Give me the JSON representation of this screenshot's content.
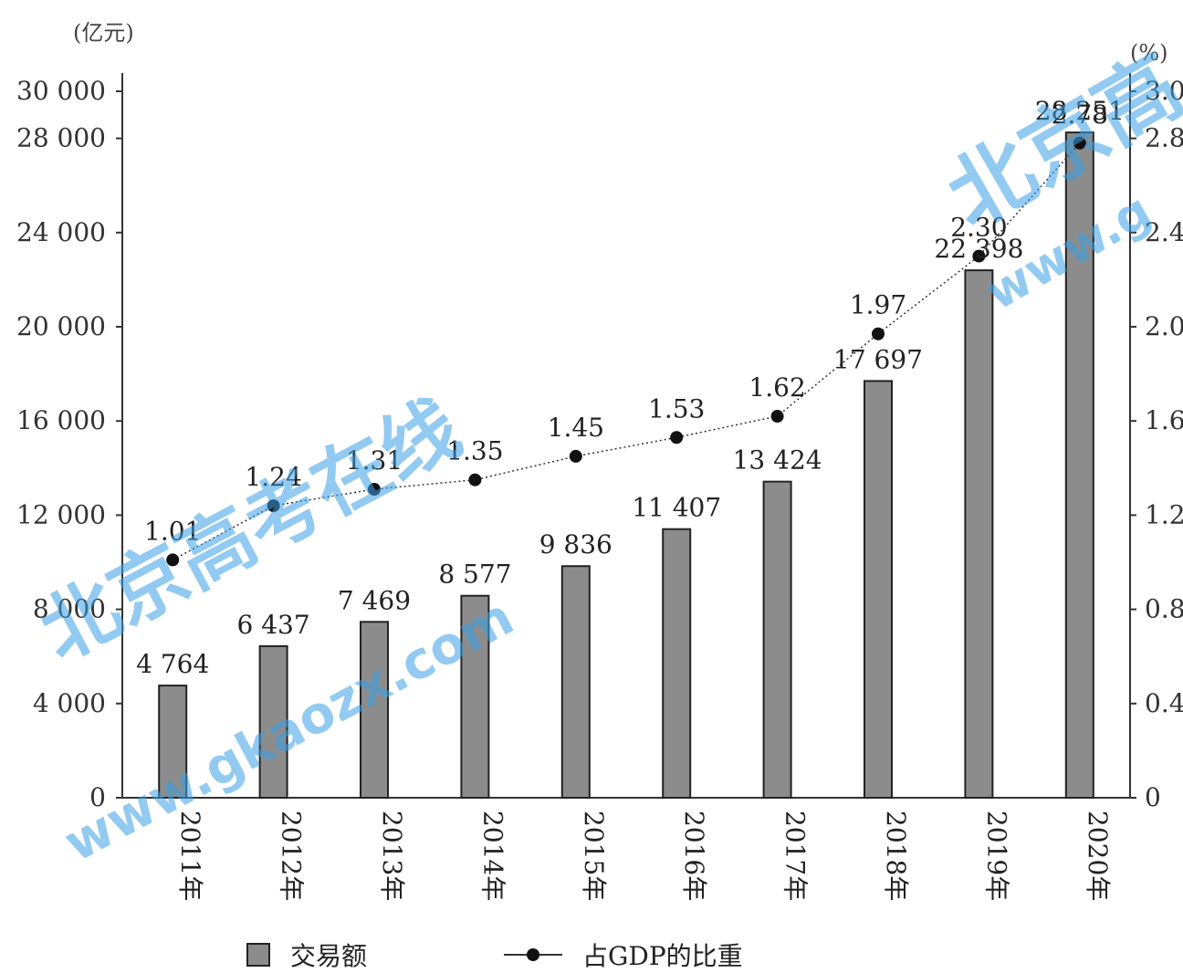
{
  "units": {
    "left": "(亿元)",
    "right": "(%)"
  },
  "legend": {
    "bar": "交易额",
    "line": "占GDP的比重"
  },
  "watermark": {
    "line1": "北京高考在线",
    "line2": "www.gkaozx.com",
    "corner": "北京高",
    "corner_url": "www.g",
    "bottom_left": "京高考",
    "bottom_url": "www.gkaozx.com"
  },
  "colors": {
    "bar": "#8c8c8c",
    "line": "#333333",
    "point": "#111111"
  },
  "chart_data": {
    "type": "bar",
    "categories": [
      "2011年",
      "2012年",
      "2013年",
      "2014年",
      "2015年",
      "2016年",
      "2017年",
      "2018年",
      "2019年",
      "2020年"
    ],
    "series": [
      {
        "name": "交易额",
        "type": "bar",
        "axis": "left",
        "values": [
          4764,
          6437,
          7469,
          8577,
          9836,
          11407,
          13424,
          17697,
          22398,
          28251
        ],
        "labels": [
          "4 764",
          "6 437",
          "7 469",
          "8 577",
          "9 836",
          "11 407",
          "13 424",
          "17 697",
          "22 398",
          "28 251"
        ]
      },
      {
        "name": "占GDP的比重",
        "type": "line",
        "axis": "right",
        "values": [
          1.01,
          1.24,
          1.31,
          1.35,
          1.45,
          1.53,
          1.62,
          1.97,
          2.3,
          2.78
        ],
        "labels": [
          "1.01",
          "1.24",
          "1.31",
          "1.35",
          "1.45",
          "1.53",
          "1.62",
          "1.97",
          "2.30",
          "2.78"
        ]
      }
    ],
    "y_left": {
      "ylim": [
        0,
        30000
      ],
      "ticks": [
        0,
        4000,
        8000,
        12000,
        16000,
        20000,
        24000,
        28000,
        30000
      ],
      "tick_labels": [
        "0",
        "4 000",
        "8 000",
        "12 000",
        "16 000",
        "20 000",
        "24 000",
        "28 000",
        "30 000"
      ]
    },
    "y_right": {
      "ylim": [
        0,
        3.0
      ],
      "ticks": [
        0,
        0.4,
        0.8,
        1.2,
        1.6,
        2.0,
        2.4,
        2.8,
        3.0
      ],
      "tick_labels": [
        "0",
        "0.4",
        "0.8",
        "1.2",
        "1.6",
        "2.0",
        "2.4",
        "2.8",
        "3.0"
      ]
    },
    "grid": false,
    "legend_position": "bottom"
  }
}
